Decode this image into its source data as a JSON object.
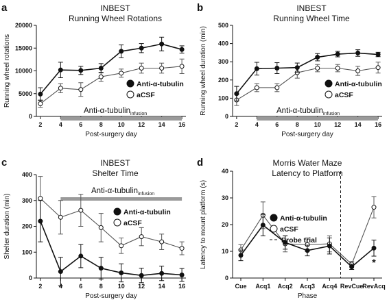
{
  "legend_labels": {
    "anti": "Anti-α-tubulin",
    "acsf": "aCSF",
    "probe": "Probe trial"
  },
  "chart_data": [
    {
      "panel": "a",
      "type": "line",
      "title": "INBEST",
      "subtitle": "Running Wheel Rotations",
      "xlabel": "Post-surgery day",
      "ylabel": "Running wheel rotations",
      "x": [
        2,
        4,
        6,
        8,
        10,
        12,
        14,
        16
      ],
      "xticks": [
        2,
        4,
        6,
        8,
        10,
        12,
        14,
        16
      ],
      "yticks": [
        0,
        5000,
        10000,
        15000,
        20000
      ],
      "ylim": [
        0,
        20000
      ],
      "grid": false,
      "legend": "right",
      "series": [
        {
          "name": "Anti-α-tubulin",
          "marker": "filled",
          "values": [
            4900,
            10200,
            10100,
            10600,
            14300,
            15000,
            15900,
            14700
          ],
          "errors": [
            1400,
            1700,
            900,
            1000,
            1400,
            1000,
            1500,
            800
          ]
        },
        {
          "name": "aCSF",
          "marker": "open",
          "values": [
            2800,
            6200,
            5900,
            8700,
            9500,
            10600,
            10600,
            11000
          ],
          "errors": [
            800,
            1000,
            1500,
            1000,
            900,
            1100,
            1100,
            1600
          ]
        }
      ],
      "bar_annotation": {
        "text": "Anti-α-tubulin",
        "subscript": "infusion",
        "x_range": [
          4,
          16
        ]
      }
    },
    {
      "panel": "b",
      "type": "line",
      "title": "INBEST",
      "subtitle": "Running Wheel Time",
      "xlabel": "Post-surgery day",
      "ylabel": "Running wheel duration (min)",
      "x": [
        2,
        4,
        6,
        8,
        10,
        12,
        14,
        16
      ],
      "xticks": [
        2,
        4,
        6,
        8,
        10,
        12,
        14,
        16
      ],
      "yticks": [
        0,
        100,
        200,
        300,
        400,
        500
      ],
      "ylim": [
        0,
        500
      ],
      "grid": false,
      "legend": "right",
      "series": [
        {
          "name": "Anti-α-tubulin",
          "marker": "filled",
          "values": [
            125,
            262,
            265,
            268,
            325,
            342,
            348,
            340
          ],
          "errors": [
            40,
            35,
            30,
            25,
            20,
            15,
            18,
            12
          ]
        },
        {
          "name": "aCSF",
          "marker": "open",
          "values": [
            90,
            158,
            158,
            240,
            265,
            265,
            250,
            268
          ],
          "errors": [
            30,
            22,
            22,
            30,
            20,
            20,
            25,
            30
          ]
        }
      ],
      "bar_annotation": {
        "text": "Anti-α-tubulin",
        "subscript": "infusion",
        "x_range": [
          4,
          16
        ]
      }
    },
    {
      "panel": "c",
      "type": "line",
      "title": "INBEST",
      "subtitle": "Shelter Time",
      "xlabel": "Post-surgery day",
      "ylabel": "Shelter duration (min)",
      "x": [
        2,
        4,
        6,
        8,
        10,
        12,
        14,
        16
      ],
      "xticks": [
        2,
        4,
        6,
        8,
        10,
        12,
        14,
        16
      ],
      "yticks": [
        0,
        100,
        200,
        300,
        400
      ],
      "ylim": [
        0,
        400
      ],
      "grid": false,
      "legend": "right",
      "series": [
        {
          "name": "Anti-α-tubulin",
          "marker": "filled",
          "values": [
            220,
            25,
            85,
            38,
            20,
            10,
            18,
            12
          ],
          "errors": [
            80,
            55,
            45,
            42,
            35,
            28,
            28,
            25
          ]
        },
        {
          "name": "aCSF",
          "marker": "open",
          "values": [
            308,
            235,
            262,
            195,
            125,
            160,
            140,
            115
          ],
          "errors": [
            85,
            65,
            62,
            55,
            30,
            35,
            30,
            25
          ]
        }
      ],
      "bar_annotation": {
        "text": "Anti-α-tubulin",
        "subscript": "infusion",
        "x_range": [
          4,
          16
        ]
      }
    },
    {
      "panel": "d",
      "type": "line",
      "title": "Morris Water Maze",
      "subtitle": "Latency to Platform",
      "xlabel": "Phase",
      "ylabel": "Latency to mount platform (s)",
      "categories": [
        "Cue",
        "Acq1",
        "Acq2",
        "Acq3",
        "Acq4",
        "RevCue",
        "RevAcq"
      ],
      "yticks": [
        0,
        10,
        20,
        30,
        40
      ],
      "ylim": [
        0,
        40
      ],
      "grid": false,
      "legend": "center",
      "series": [
        {
          "name": "Anti-α-tubulin",
          "marker": "filled",
          "values": [
            8.5,
            19.8,
            13.3,
            10.3,
            12.0,
            4.2,
            11.2
          ],
          "errors": [
            2.0,
            4.0,
            2.5,
            2.0,
            3.0,
            1.0,
            3.0
          ]
        },
        {
          "name": "aCSF",
          "marker": "open",
          "values": [
            10.5,
            23.5,
            12.8,
            12.5,
            12.8,
            5.2,
            26.5
          ],
          "errors": [
            2.0,
            5.0,
            3.0,
            2.5,
            3.0,
            1.0,
            4.0
          ]
        }
      ],
      "probe_trial_between": [
        "Acq4",
        "RevCue"
      ],
      "annotations": [
        {
          "text": "*",
          "at": "RevAcq"
        }
      ]
    }
  ]
}
